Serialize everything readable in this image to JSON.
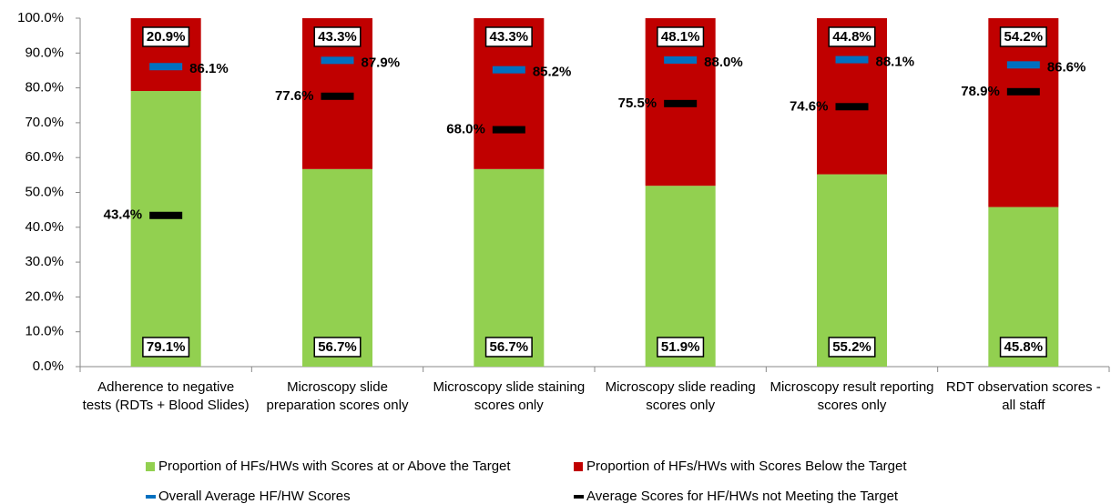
{
  "chart_data": {
    "type": "bar",
    "categories": [
      "Adherence to negative tests (RDTs + Blood Slides)",
      "Microscopy slide preparation scores only",
      "Microscopy slide staining scores only",
      "Microscopy slide reading scores only",
      "Microscopy result reporting scores only",
      "RDT observation scores - all staff"
    ],
    "series": [
      {
        "name": "Proportion of HFs/HWs with Scores at or Above the Target",
        "color": "#92d050",
        "values": [
          79.1,
          56.7,
          56.7,
          51.9,
          55.2,
          45.8
        ],
        "value_labels": [
          "79.1%",
          "56.7%",
          "56.7%",
          "51.9%",
          "55.2%",
          "45.8%"
        ]
      },
      {
        "name": "Proportion of HFs/HWs with Scores Below the Target",
        "color": "#c00000",
        "values": [
          20.9,
          43.3,
          43.3,
          48.1,
          44.8,
          54.2
        ],
        "value_labels": [
          "20.9%",
          "43.3%",
          "43.3%",
          "48.1%",
          "44.8%",
          "54.2%"
        ]
      },
      {
        "name": "Overall Average HF/HW Scores",
        "color": "#0070c0",
        "marker": "dash",
        "values": [
          86.1,
          87.9,
          85.2,
          88.0,
          88.1,
          86.6
        ],
        "value_labels": [
          "86.1%",
          "87.9%",
          "85.2%",
          "88.0%",
          "88.1%",
          "86.6%"
        ]
      },
      {
        "name": "Average Scores for HF/HWs not Meeting the Target",
        "color": "#000000",
        "marker": "dash",
        "values": [
          43.4,
          77.6,
          68.0,
          75.5,
          74.6,
          78.9
        ],
        "value_labels": [
          "43.4%",
          "77.6%",
          "68.0%",
          "75.5%",
          "74.6%",
          "78.9%"
        ]
      }
    ],
    "ylim": [
      0,
      100
    ],
    "yticks": [
      {
        "value": 0,
        "label": "0.0%"
      },
      {
        "value": 10,
        "label": "10.0%"
      },
      {
        "value": 20,
        "label": "20.0%"
      },
      {
        "value": 30,
        "label": "30.0%"
      },
      {
        "value": 40,
        "label": "40.0%"
      },
      {
        "value": 50,
        "label": "50.0%"
      },
      {
        "value": 60,
        "label": "60.0%"
      },
      {
        "value": 70,
        "label": "70.0%"
      },
      {
        "value": 80,
        "label": "80.0%"
      },
      {
        "value": 90,
        "label": "90.0%"
      },
      {
        "value": 100,
        "label": "100.0%"
      }
    ],
    "legend": "bottom"
  }
}
